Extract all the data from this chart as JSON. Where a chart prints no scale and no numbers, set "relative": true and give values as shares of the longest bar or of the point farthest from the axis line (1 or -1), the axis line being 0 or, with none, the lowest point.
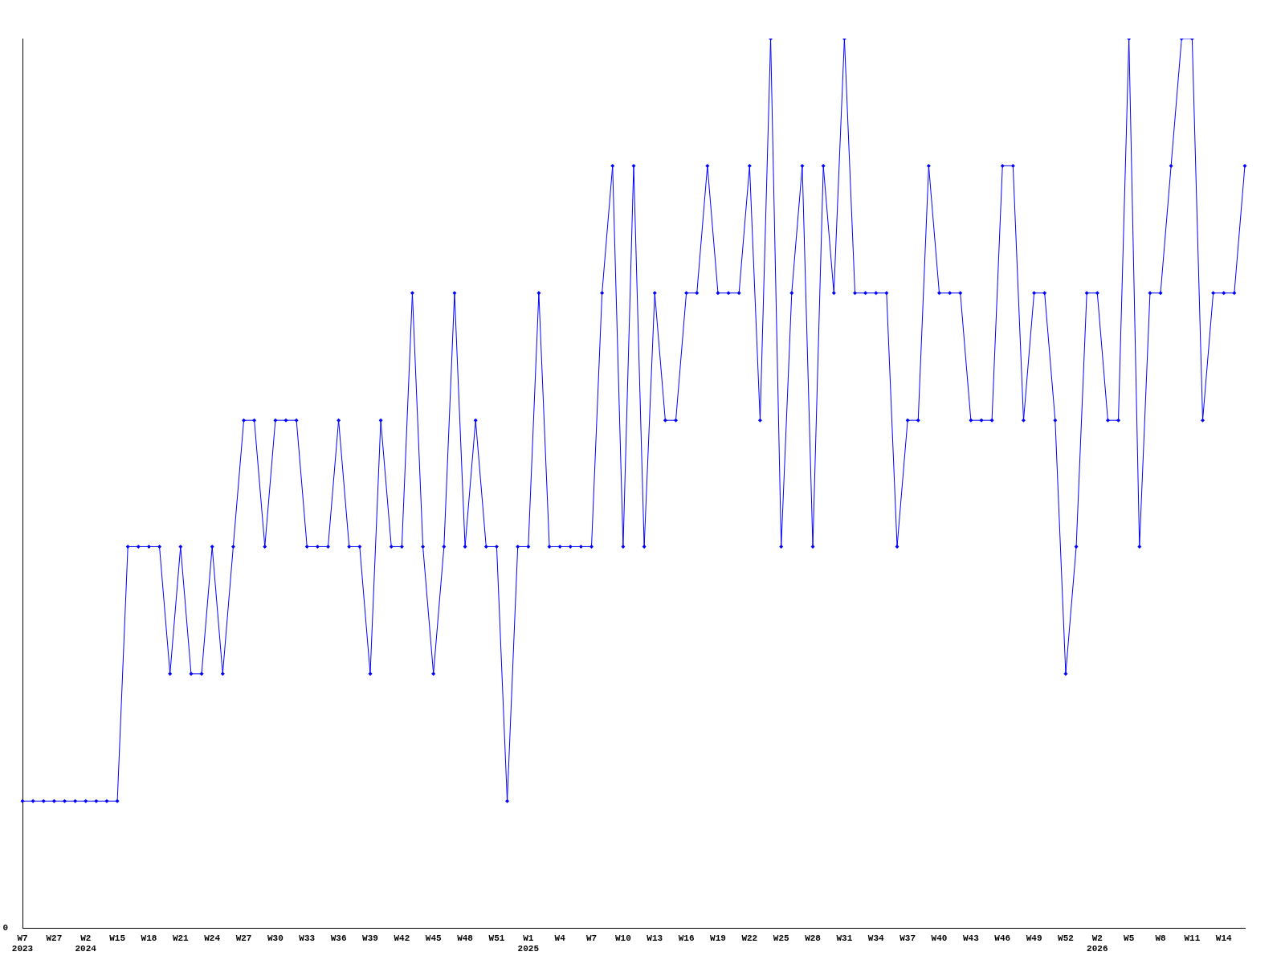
{
  "chart_data": {
    "type": "line",
    "relative": true,
    "marker": "diamond",
    "line_style": "solid",
    "grid": false,
    "legend": false,
    "annotations": [
      "0"
    ],
    "categories": [
      "W7\n2023",
      null,
      null,
      "W27",
      null,
      null,
      "W2\n2024",
      null,
      null,
      "W15",
      null,
      null,
      "W18",
      null,
      null,
      "W21",
      null,
      null,
      "W24",
      null,
      null,
      "W27",
      null,
      null,
      "W30",
      null,
      null,
      "W33",
      null,
      null,
      "W36",
      null,
      null,
      "W39",
      null,
      null,
      "W42",
      null,
      null,
      "W45",
      null,
      null,
      "W48",
      null,
      null,
      "W51",
      null,
      null,
      "W1\n2025",
      null,
      null,
      "W4",
      null,
      null,
      "W7",
      null,
      null,
      "W10",
      null,
      null,
      "W13",
      null,
      null,
      "W16",
      null,
      null,
      "W19",
      null,
      null,
      "W22",
      null,
      null,
      "W25",
      null,
      null,
      "W28",
      null,
      null,
      "W31",
      null,
      null,
      "W34",
      null,
      null,
      "W37",
      null,
      null,
      "W40",
      null,
      null,
      "W43",
      null,
      null,
      "W46",
      null,
      null,
      "W49",
      null,
      null,
      "W52",
      null,
      null,
      "W2\n2026",
      null,
      null,
      "W5",
      null,
      null,
      "W8",
      null,
      null,
      "W11",
      null,
      null,
      "W14",
      null,
      null
    ],
    "series": [
      {
        "color": "#0000ff",
        "values": [
          0.143,
          0.143,
          0.143,
          0.143,
          0.143,
          0.143,
          0.143,
          0.143,
          0.143,
          0.143,
          0.429,
          0.429,
          0.429,
          0.429,
          0.286,
          0.429,
          0.286,
          0.286,
          0.429,
          0.286,
          0.429,
          0.571,
          0.571,
          0.429,
          0.571,
          0.571,
          0.571,
          0.429,
          0.429,
          0.429,
          0.571,
          0.429,
          0.429,
          0.286,
          0.571,
          0.429,
          0.429,
          0.714,
          0.429,
          0.286,
          0.429,
          0.714,
          0.429,
          0.571,
          0.429,
          0.429,
          0.143,
          0.429,
          0.429,
          0.714,
          0.429,
          0.429,
          0.429,
          0.429,
          0.429,
          0.714,
          0.857,
          0.429,
          0.857,
          0.429,
          0.714,
          0.571,
          0.571,
          0.714,
          0.714,
          0.857,
          0.714,
          0.714,
          0.714,
          0.857,
          0.571,
          1,
          0.429,
          0.714,
          0.857,
          0.429,
          0.857,
          0.714,
          1,
          0.714,
          0.714,
          0.714,
          0.714,
          0.429,
          0.571,
          0.571,
          0.857,
          0.714,
          0.714,
          0.714,
          0.571,
          0.571,
          0.571,
          0.857,
          0.857,
          0.571,
          0.714,
          0.714,
          0.571,
          0.286,
          0.429,
          0.714,
          0.714,
          0.571,
          0.571,
          1,
          0.429,
          0.714,
          0.714,
          0.857,
          1,
          1,
          0.571,
          0.714,
          0.714,
          0.714,
          0.857
        ]
      }
    ]
  }
}
